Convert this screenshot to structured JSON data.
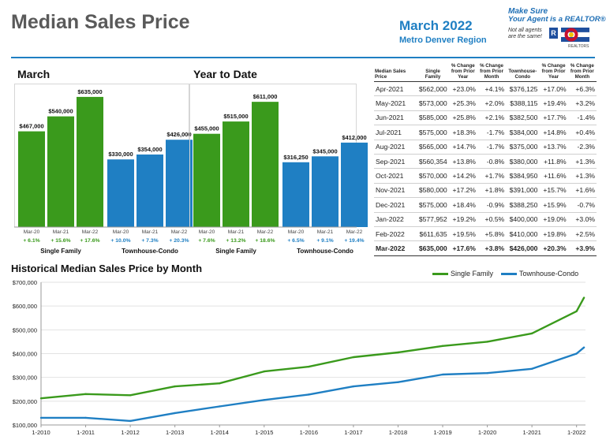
{
  "header": {
    "title": "Median Sales Price",
    "date": "March 2022",
    "region": "Metro Denver Region",
    "logo_line1": "Make Sure",
    "logo_line2": "Your Agent is a REALTOR®",
    "logo_line3": "Not all agents",
    "logo_line4": "are the same!",
    "logo_line5": "REALTORS",
    "logo_badge": "R"
  },
  "colors": {
    "single_family": "#3a9a1c",
    "townhouse_condo": "#1f7fc3",
    "header_blue": "#1f7fc3"
  },
  "chart_data": [
    {
      "type": "bar",
      "title": "March",
      "categories": [
        "Mar-20",
        "Mar-21",
        "Mar-22",
        "Mar-20",
        "Mar-21",
        "Mar-22"
      ],
      "groups": [
        "Single Family",
        "Townhouse-Condo"
      ],
      "values": [
        467000,
        540000,
        635000,
        330000,
        354000,
        426000
      ],
      "value_labels": [
        "$467,000",
        "$540,000",
        "$635,000",
        "$330,000",
        "$354,000",
        "$426,000"
      ],
      "change_labels": [
        "+ 6.1%",
        "+ 15.6%",
        "+ 17.6%",
        "+ 10.0%",
        "+ 7.3%",
        "+ 20.3%"
      ],
      "ylim": [
        0,
        700000
      ]
    },
    {
      "type": "bar",
      "title": "Year to Date",
      "categories": [
        "Mar-20",
        "Mar-21",
        "Mar-22",
        "Mar-20",
        "Mar-21",
        "Mar-22"
      ],
      "groups": [
        "Single Family",
        "Townhouse-Condo"
      ],
      "values": [
        455000,
        515000,
        611000,
        316250,
        345000,
        412000
      ],
      "value_labels": [
        "$455,000",
        "$515,000",
        "$611,000",
        "$316,250",
        "$345,000",
        "$412,000"
      ],
      "change_labels": [
        "+ 7.6%",
        "+ 13.2%",
        "+ 18.6%",
        "+ 6.5%",
        "+ 9.1%",
        "+ 19.4%"
      ],
      "ylim": [
        0,
        700000
      ]
    },
    {
      "type": "table",
      "columns": [
        "Median Sales Price",
        "Single Family",
        "% Change from Prior Year",
        "% Change from Prior Month",
        "Townhouse-Condo",
        "% Change from Prior Year",
        "% Change from Prior Month"
      ],
      "rows": [
        [
          "Apr-2021",
          "$562,000",
          "+23.0%",
          "+4.1%",
          "$376,125",
          "+17.0%",
          "+6.3%"
        ],
        [
          "May-2021",
          "$573,000",
          "+25.3%",
          "+2.0%",
          "$388,115",
          "+19.4%",
          "+3.2%"
        ],
        [
          "Jun-2021",
          "$585,000",
          "+25.8%",
          "+2.1%",
          "$382,500",
          "+17.7%",
          "-1.4%"
        ],
        [
          "Jul-2021",
          "$575,000",
          "+18.3%",
          "-1.7%",
          "$384,000",
          "+14.8%",
          "+0.4%"
        ],
        [
          "Aug-2021",
          "$565,000",
          "+14.7%",
          "-1.7%",
          "$375,000",
          "+13.7%",
          "-2.3%"
        ],
        [
          "Sep-2021",
          "$560,354",
          "+13.8%",
          "-0.8%",
          "$380,000",
          "+11.8%",
          "+1.3%"
        ],
        [
          "Oct-2021",
          "$570,000",
          "+14.2%",
          "+1.7%",
          "$384,950",
          "+11.6%",
          "+1.3%"
        ],
        [
          "Nov-2021",
          "$580,000",
          "+17.2%",
          "+1.8%",
          "$391,000",
          "+15.7%",
          "+1.6%"
        ],
        [
          "Dec-2021",
          "$575,000",
          "+18.4%",
          "-0.9%",
          "$388,250",
          "+15.9%",
          "-0.7%"
        ],
        [
          "Jan-2022",
          "$577,952",
          "+19.2%",
          "+0.5%",
          "$400,000",
          "+19.0%",
          "+3.0%"
        ],
        [
          "Feb-2022",
          "$611,635",
          "+19.5%",
          "+5.8%",
          "$410,000",
          "+19.8%",
          "+2.5%"
        ],
        [
          "Mar-2022",
          "$635,000",
          "+17.6%",
          "+3.8%",
          "$426,000",
          "+20.3%",
          "+3.9%"
        ]
      ]
    },
    {
      "type": "line",
      "title": "Historical Median Sales Price by Month",
      "x_ticks": [
        "1-2010",
        "1-2011",
        "1-2012",
        "1-2013",
        "1-2014",
        "1-2015",
        "1-2016",
        "1-2017",
        "1-2018",
        "1-2019",
        "1-2020",
        "1-2021",
        "1-2022"
      ],
      "y_ticks": [
        "$100,000",
        "$200,000",
        "$300,000",
        "$400,000",
        "$500,000",
        "$600,000",
        "$700,000"
      ],
      "ylim": [
        100000,
        700000
      ],
      "x": [
        "2010-01",
        "2011-01",
        "2012-01",
        "2013-01",
        "2014-01",
        "2015-01",
        "2016-01",
        "2017-01",
        "2018-01",
        "2019-01",
        "2020-01",
        "2021-01",
        "2022-01",
        "2022-03"
      ],
      "grid": true,
      "legend": "top-right",
      "series": [
        {
          "name": "Single Family",
          "color": "#3a9a1c",
          "values": [
            212000,
            230000,
            225000,
            262000,
            275000,
            325000,
            345000,
            385000,
            405000,
            432000,
            450000,
            485000,
            578000,
            635000
          ]
        },
        {
          "name": "Townhouse-Condo",
          "color": "#1f7fc3",
          "values": [
            130000,
            130000,
            117000,
            150000,
            178000,
            205000,
            228000,
            262000,
            280000,
            312000,
            318000,
            336000,
            400000,
            426000
          ]
        }
      ]
    }
  ]
}
